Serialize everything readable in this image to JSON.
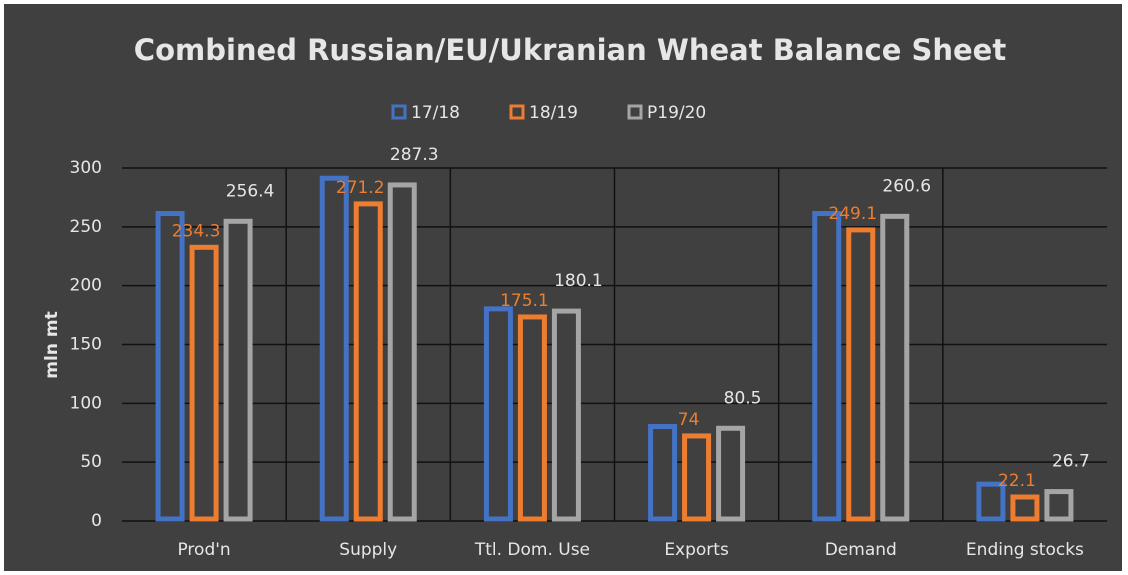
{
  "chart_data": {
    "type": "bar",
    "title": "Combined Russian/EU/Ukranian Wheat Balance Sheet",
    "y_label": "mln mt",
    "categories": [
      "Prod'n",
      "Supply",
      "Ttl. Dom. Use",
      "Exports",
      "Demand",
      "Ending stocks"
    ],
    "series": [
      {
        "name": "17/18",
        "color": "#4472c4",
        "show_labels": false,
        "values": [
          263,
          293,
          182,
          82,
          263,
          33
        ]
      },
      {
        "name": "18/19",
        "color": "#ed7d31",
        "show_labels": true,
        "values": [
          234.3,
          271.2,
          175.1,
          74,
          249.1,
          22.1
        ]
      },
      {
        "name": "P19/20",
        "color": "#a5a5a5",
        "show_labels": true,
        "values": [
          256.4,
          287.3,
          180.1,
          80.5,
          260.6,
          26.7
        ]
      }
    ],
    "ylim": [
      0,
      300
    ],
    "yticks": [
      0,
      50,
      100,
      150,
      200,
      250,
      300
    ],
    "grid": true,
    "legend": "top"
  }
}
